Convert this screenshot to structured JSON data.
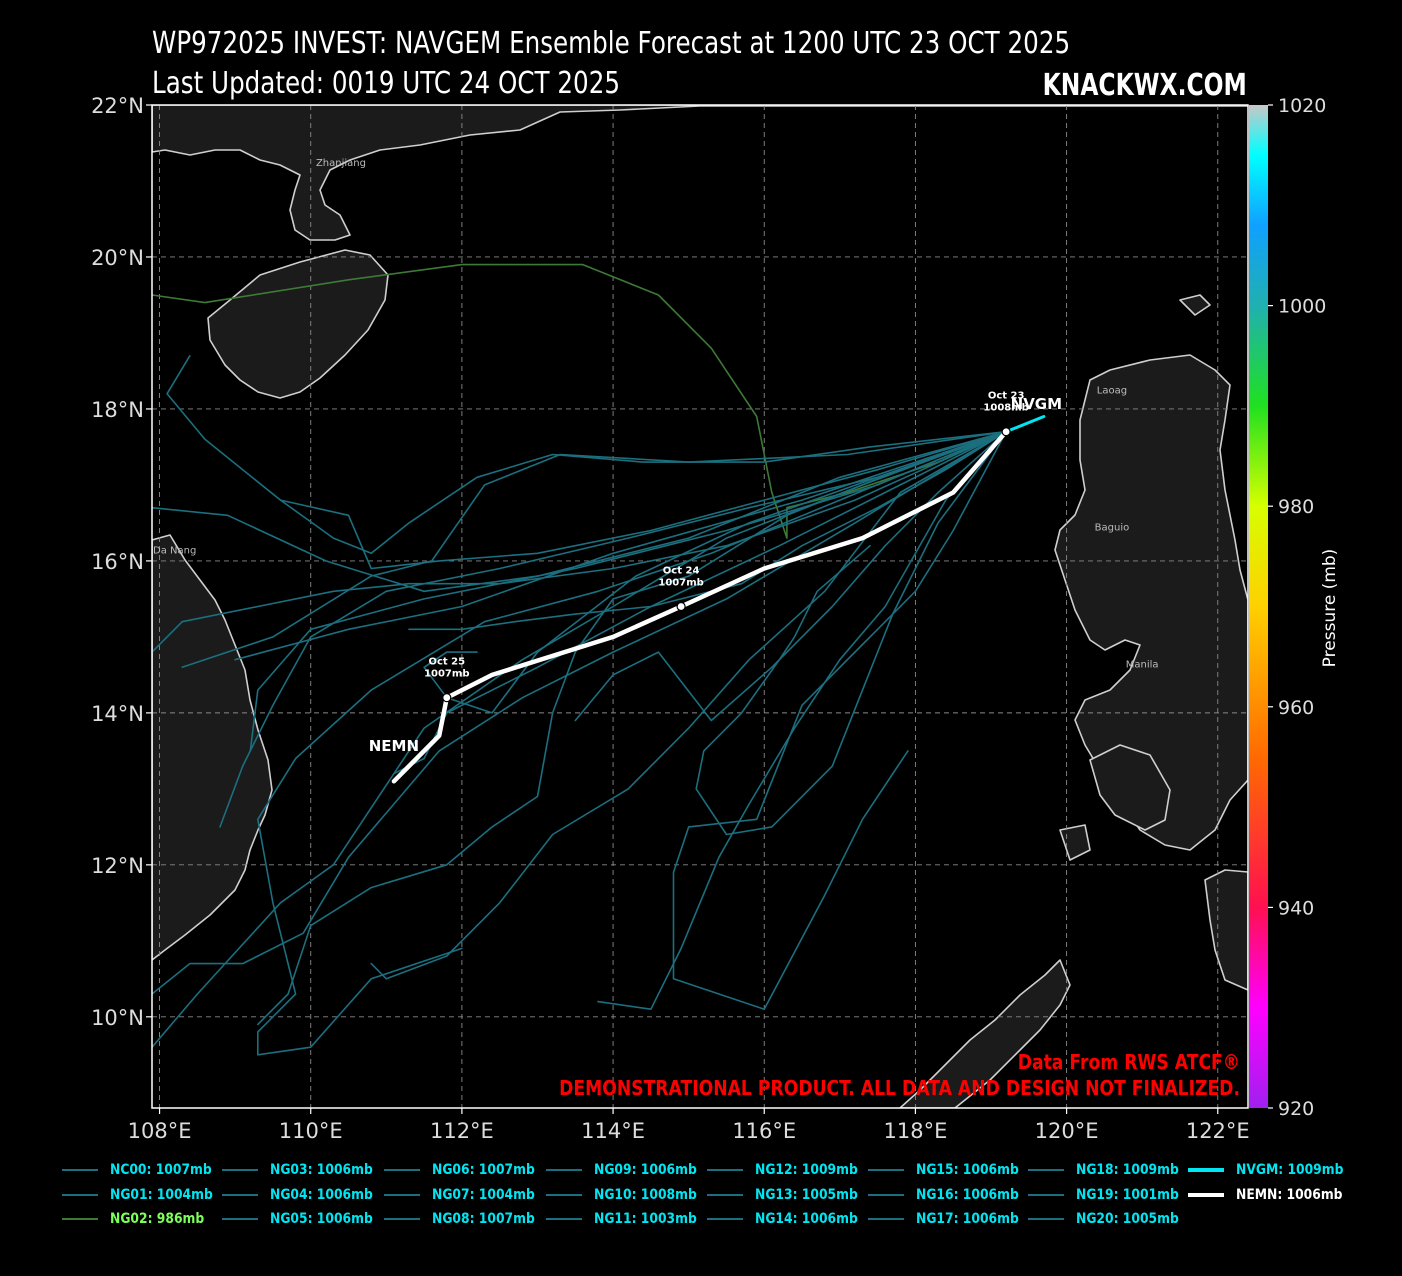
{
  "header": {
    "title": "WP972025 INVEST: NAVGEM Ensemble Forecast at 1200 UTC 23 OCT 2025",
    "updated": "Last Updated: 0019 UTC 24 OCT 2025",
    "brand": "KNACKWX.COM"
  },
  "credits": {
    "source": "Data From RWS ATCF®",
    "disclaimer": "DEMONSTRATIONAL PRODUCT. ALL DATA AND DESIGN NOT FINALIZED."
  },
  "map": {
    "lon_range": [
      107.9,
      122.4
    ],
    "lat_range": [
      8.8,
      22.0
    ],
    "lon_ticks": [
      108,
      110,
      112,
      114,
      116,
      118,
      120,
      122
    ],
    "lat_ticks": [
      10,
      12,
      14,
      16,
      18,
      20,
      22
    ],
    "lon_tick_labels": [
      "108°E",
      "110°E",
      "112°E",
      "114°E",
      "116°E",
      "118°E",
      "120°E",
      "122°E"
    ],
    "lat_tick_labels": [
      "10°N",
      "12°N",
      "14°N",
      "16°N",
      "18°N",
      "20°N",
      "22°N"
    ],
    "grid": true,
    "places": [
      {
        "name": "Zhanjiang",
        "lon": 110.4,
        "lat": 21.2
      },
      {
        "name": "Da Nang",
        "lon": 108.2,
        "lat": 16.1
      },
      {
        "name": "Laoag",
        "lon": 120.6,
        "lat": 18.2
      },
      {
        "name": "Baguio",
        "lon": 120.6,
        "lat": 16.4
      },
      {
        "name": "Manila",
        "lon": 121.0,
        "lat": 14.6
      }
    ]
  },
  "colorbar": {
    "label": "Pressure (mb)",
    "min": 920,
    "max": 1020,
    "ticks": [
      920,
      940,
      960,
      980,
      1000,
      1020
    ],
    "tick_labels": [
      "920",
      "940",
      "960",
      "980",
      "1000",
      "1020"
    ]
  },
  "chart_data": {
    "type": "line",
    "series": [
      {
        "name": "NC00: 1007mb",
        "color": "#1b6f7f",
        "lonlat": [
          [
            119.2,
            17.7
          ],
          [
            117,
            17.1
          ],
          [
            115,
            16.3
          ],
          [
            113,
            15.8
          ],
          [
            111.5,
            15.6
          ],
          [
            110.2,
            16.0
          ],
          [
            108.9,
            16.6
          ],
          [
            107.9,
            16.7
          ]
        ]
      },
      {
        "name": "NG01: 1004mb",
        "color": "#1b6f7f",
        "lonlat": [
          [
            119.2,
            17.7
          ],
          [
            116.5,
            16.8
          ],
          [
            114,
            16.1
          ],
          [
            112,
            15.4
          ],
          [
            110.5,
            15.1
          ],
          [
            109,
            14.7
          ]
        ]
      },
      {
        "name": "NG02: 986mb",
        "color": "#3d7a35",
        "lonlat": [
          [
            119.2,
            17.7
          ],
          [
            118.3,
            17.3
          ],
          [
            117.1,
            16.9
          ],
          [
            116.3,
            16.7
          ],
          [
            116.3,
            16.3
          ],
          [
            116.1,
            16.9
          ],
          [
            115.9,
            17.9
          ],
          [
            115.3,
            18.8
          ],
          [
            114.6,
            19.5
          ],
          [
            113.6,
            19.9
          ],
          [
            112,
            19.9
          ],
          [
            110.5,
            19.7
          ],
          [
            108.6,
            19.4
          ],
          [
            107.9,
            19.5
          ]
        ]
      },
      {
        "name": "NG03: 1006mb",
        "color": "#1b6f7f",
        "lonlat": [
          [
            119.2,
            17.7
          ],
          [
            117.5,
            17.0
          ],
          [
            115.5,
            16.4
          ],
          [
            113.5,
            15.9
          ],
          [
            111.5,
            15.5
          ],
          [
            110,
            15.1
          ],
          [
            109.3,
            14.3
          ],
          [
            109.2,
            13.5
          ]
        ]
      },
      {
        "name": "NG04: 1006mb",
        "color": "#1b6f7f",
        "lonlat": [
          [
            119.2,
            17.7
          ],
          [
            117.1,
            17.4
          ],
          [
            115,
            17.3
          ],
          [
            113.3,
            17.4
          ],
          [
            112.3,
            17.0
          ],
          [
            111.6,
            16.0
          ],
          [
            110.8,
            15.8
          ],
          [
            109.5,
            15.0
          ],
          [
            108.3,
            14.6
          ]
        ]
      },
      {
        "name": "NG05: 1006mb",
        "color": "#1b6f7f",
        "lonlat": [
          [
            119.2,
            17.7
          ],
          [
            117.3,
            17.0
          ],
          [
            115.5,
            16.3
          ],
          [
            114,
            15.4
          ],
          [
            112.8,
            14.7
          ],
          [
            111.5,
            13.8
          ],
          [
            110.3,
            12.0
          ],
          [
            109.6,
            11.5
          ],
          [
            108.5,
            10.3
          ],
          [
            107.9,
            9.6
          ]
        ]
      },
      {
        "name": "NG06: 1007mb",
        "color": "#1b6f7f",
        "lonlat": [
          [
            119.2,
            17.7
          ],
          [
            117.5,
            17.2
          ],
          [
            116,
            16.8
          ],
          [
            114.5,
            16.4
          ],
          [
            113,
            16.1
          ],
          [
            111.7,
            16.0
          ],
          [
            110.8,
            15.9
          ],
          [
            110.5,
            16.6
          ],
          [
            109.6,
            16.8
          ],
          [
            108.6,
            17.6
          ],
          [
            108.1,
            18.2
          ],
          [
            108.4,
            18.7
          ]
        ]
      },
      {
        "name": "NG07: 1004mb",
        "color": "#1b6f7f",
        "lonlat": [
          [
            119.2,
            17.7
          ],
          [
            117.8,
            16.9
          ],
          [
            116.8,
            15.6
          ],
          [
            115.8,
            14.7
          ],
          [
            115,
            13.8
          ],
          [
            114.2,
            13.0
          ],
          [
            113.2,
            12.4
          ],
          [
            112.5,
            11.5
          ],
          [
            111.8,
            10.8
          ],
          [
            111,
            10.5
          ],
          [
            110.8,
            10.7
          ]
        ]
      },
      {
        "name": "NG08: 1007mb",
        "color": "#1b6f7f",
        "lonlat": [
          [
            119.2,
            17.7
          ],
          [
            117,
            16.8
          ],
          [
            115.3,
            16.1
          ],
          [
            113.8,
            15.6
          ],
          [
            112.3,
            15.2
          ],
          [
            110.8,
            14.3
          ],
          [
            109.8,
            13.4
          ],
          [
            109.3,
            12.6
          ],
          [
            109.5,
            11.5
          ],
          [
            109.8,
            10.3
          ],
          [
            109.3,
            9.8
          ],
          [
            109.3,
            9.5
          ],
          [
            110,
            9.6
          ],
          [
            110.8,
            10.5
          ],
          [
            112,
            10.9
          ]
        ]
      },
      {
        "name": "NG09: 1006mb",
        "color": "#1b6f7f",
        "lonlat": [
          [
            119.2,
            17.7
          ],
          [
            117.2,
            16.5
          ],
          [
            115.5,
            15.5
          ],
          [
            114,
            14.8
          ],
          [
            112.8,
            14.2
          ],
          [
            111.7,
            13.5
          ],
          [
            110.5,
            12.1
          ],
          [
            109.9,
            11.1
          ],
          [
            109.1,
            10.7
          ],
          [
            108.4,
            10.7
          ],
          [
            107.9,
            10.3
          ]
        ]
      },
      {
        "name": "NG10: 1008mb",
        "color": "#1b6f7f",
        "lonlat": [
          [
            119.2,
            17.7
          ],
          [
            117.4,
            17.5
          ],
          [
            116,
            17.3
          ],
          [
            114.4,
            17.3
          ],
          [
            113.2,
            17.4
          ],
          [
            112.2,
            17.1
          ],
          [
            111.3,
            16.5
          ],
          [
            110.8,
            16.1
          ],
          [
            110.3,
            16.3
          ],
          [
            109.6,
            16.8
          ]
        ]
      },
      {
        "name": "NG11: 1003mb",
        "color": "#1b6f7f",
        "lonlat": [
          [
            119.2,
            17.7
          ],
          [
            118.5,
            16.4
          ],
          [
            118,
            15.6
          ],
          [
            117.3,
            14.9
          ],
          [
            116.5,
            14.1
          ],
          [
            115.9,
            12.6
          ],
          [
            115,
            12.5
          ],
          [
            114.8,
            11.9
          ],
          [
            114.8,
            10.5
          ],
          [
            115.4,
            10.3
          ],
          [
            116,
            10.1
          ],
          [
            116.8,
            11.6
          ],
          [
            117.3,
            12.6
          ],
          [
            117.9,
            13.5
          ]
        ]
      },
      {
        "name": "NG12: 1009mb",
        "color": "#1b6f7f",
        "lonlat": [
          [
            119.2,
            17.7
          ],
          [
            118.4,
            17.2
          ],
          [
            117.5,
            16.7
          ],
          [
            116.5,
            16.2
          ],
          [
            115.7,
            15.7
          ],
          [
            114.5,
            15.4
          ],
          [
            113.5,
            15.3
          ],
          [
            112.7,
            15.2
          ],
          [
            112,
            15.1
          ],
          [
            111.3,
            15.1
          ]
        ]
      },
      {
        "name": "NG13: 1005mb",
        "color": "#1b6f7f",
        "lonlat": [
          [
            119.2,
            17.7
          ],
          [
            118.9,
            17.3
          ],
          [
            118.3,
            16.5
          ],
          [
            117.7,
            15.3
          ],
          [
            117.3,
            14.3
          ],
          [
            116.9,
            13.3
          ],
          [
            116.1,
            12.5
          ],
          [
            115.5,
            12.4
          ],
          [
            115.1,
            13.0
          ],
          [
            115.2,
            13.5
          ],
          [
            115.7,
            14.0
          ],
          [
            116.2,
            14.7
          ],
          [
            116.4,
            15.0
          ],
          [
            116.7,
            15.6
          ],
          [
            117.4,
            16.2
          ]
        ]
      },
      {
        "name": "NG14: 1006mb",
        "color": "#1b6f7f",
        "lonlat": [
          [
            119.2,
            17.7
          ],
          [
            117.5,
            17.1
          ],
          [
            115.8,
            16.5
          ],
          [
            114.3,
            15.8
          ],
          [
            113,
            14.8
          ],
          [
            112.4,
            14.0
          ],
          [
            111.8,
            14.2
          ],
          [
            111.5,
            14.6
          ],
          [
            111.8,
            14.8
          ],
          [
            112.2,
            14.8
          ]
        ]
      },
      {
        "name": "NG15: 1006mb",
        "color": "#1b6f7f",
        "lonlat": [
          [
            119.2,
            17.7
          ],
          [
            117.2,
            16.8
          ],
          [
            115.5,
            16.2
          ],
          [
            114,
            15.9
          ],
          [
            112.5,
            15.7
          ],
          [
            111.3,
            15.7
          ],
          [
            110.3,
            15.6
          ],
          [
            109.3,
            15.4
          ],
          [
            108.3,
            15.2
          ],
          [
            107.9,
            14.8
          ]
        ]
      },
      {
        "name": "NG16: 1006mb",
        "color": "#1b6f7f",
        "lonlat": [
          [
            119.2,
            17.7
          ],
          [
            117.8,
            17.2
          ],
          [
            116.3,
            16.6
          ],
          [
            115,
            15.8
          ],
          [
            114,
            15.5
          ],
          [
            113.5,
            14.8
          ],
          [
            113.2,
            14.0
          ],
          [
            113,
            12.9
          ],
          [
            112.4,
            12.5
          ],
          [
            111.8,
            12.0
          ],
          [
            110.8,
            11.7
          ],
          [
            110,
            11.2
          ],
          [
            109.7,
            10.3
          ],
          [
            109.3,
            9.9
          ]
        ]
      },
      {
        "name": "NG17: 1006mb",
        "color": "#1b6f7f",
        "lonlat": [
          [
            119.2,
            17.7
          ],
          [
            118.3,
            16.9
          ],
          [
            117.6,
            16.2
          ],
          [
            116.9,
            15.4
          ],
          [
            116.1,
            14.6
          ],
          [
            115.3,
            13.9
          ],
          [
            114.6,
            14.8
          ],
          [
            114,
            14.5
          ],
          [
            113.5,
            13.9
          ]
        ]
      },
      {
        "name": "NG18: 1009mb",
        "color": "#1b6f7f",
        "lonlat": [
          [
            119.2,
            17.7
          ],
          [
            117.8,
            17.0
          ],
          [
            116.2,
            16.2
          ],
          [
            114.5,
            15.4
          ],
          [
            113,
            14.6
          ],
          [
            111.8,
            14.0
          ],
          [
            111.5,
            13.4
          ],
          [
            111.1,
            13.2
          ]
        ]
      },
      {
        "name": "NG19: 1001mb",
        "color": "#1b6f7f",
        "lonlat": [
          [
            119.2,
            17.7
          ],
          [
            118.4,
            16.8
          ],
          [
            117.6,
            15.4
          ],
          [
            117,
            14.7
          ],
          [
            116.4,
            13.8
          ],
          [
            115.8,
            12.8
          ],
          [
            115.4,
            12.1
          ],
          [
            114.9,
            10.9
          ],
          [
            114.5,
            10.1
          ],
          [
            113.8,
            10.2
          ]
        ]
      },
      {
        "name": "NG20: 1005mb",
        "color": "#1b6f7f",
        "lonlat": [
          [
            119.2,
            17.7
          ],
          [
            117.5,
            17.1
          ],
          [
            115.8,
            16.7
          ],
          [
            114.2,
            16.3
          ],
          [
            112.5,
            15.9
          ],
          [
            111,
            15.6
          ],
          [
            110,
            15.0
          ],
          [
            109.5,
            14.1
          ],
          [
            109.1,
            13.3
          ],
          [
            108.8,
            12.5
          ]
        ]
      },
      {
        "name": "NVGM: 1009mb",
        "color": "#00e5f2",
        "lonlat": [
          [
            119.2,
            17.7
          ],
          [
            119.7,
            17.9
          ]
        ]
      },
      {
        "name": "NEMN: 1006mb",
        "color": "#ffffff",
        "lonlat": [
          [
            119.2,
            17.7
          ],
          [
            118.5,
            16.9
          ],
          [
            117.3,
            16.3
          ],
          [
            116,
            15.9
          ],
          [
            114.9,
            15.4
          ],
          [
            114,
            15.0
          ],
          [
            112.4,
            14.5
          ],
          [
            111.8,
            14.2
          ],
          [
            111.7,
            13.7
          ],
          [
            111.1,
            13.1
          ]
        ]
      }
    ],
    "annotations": [
      {
        "date": "Oct 23",
        "pressure": "1008mb",
        "lon": 119.2,
        "lat": 17.7
      },
      {
        "date": "Oct 24",
        "pressure": "1007mb",
        "lon": 114.9,
        "lat": 15.4
      },
      {
        "date": "Oct 25",
        "pressure": "1007mb",
        "lon": 111.8,
        "lat": 14.2
      }
    ],
    "track_labels": [
      {
        "text": "NVGM",
        "lon": 119.6,
        "lat": 18.0
      },
      {
        "text": "NEMN",
        "lon": 111.1,
        "lat": 13.5
      }
    ]
  }
}
